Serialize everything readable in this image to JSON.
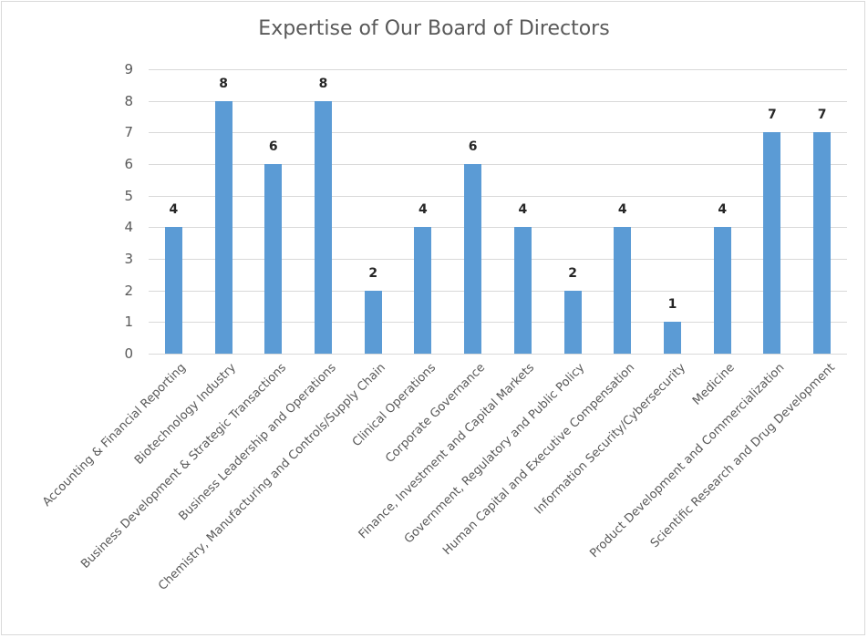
{
  "chart_data": {
    "type": "bar",
    "title": "Expertise of Our Board of Directors",
    "xlabel": "",
    "ylabel": "",
    "ylim": [
      0,
      9
    ],
    "yticks": [
      0,
      1,
      2,
      3,
      4,
      5,
      6,
      7,
      8,
      9
    ],
    "grid": true,
    "legend": null,
    "bar_color": "#5b9bd5",
    "data_labels": true,
    "categories": [
      "Accounting & Financial Reporting",
      "Biotechnology Industry",
      "Business Development & Strategic Transactions",
      "Business Leadership and Operations",
      "Chemistry, Manufacturing and Controls/Supply Chain",
      "Clinical Operations",
      "Corporate Governance",
      "Finance, Investment and Capital Markets",
      "Government, Regulatory and Public Policy",
      "Human Capital and Executive Compensation",
      "Information Security/Cybersecurity",
      "Medicine",
      "Product Development and Commercialization",
      "Scientific Research and Drug Development"
    ],
    "values": [
      4,
      8,
      6,
      8,
      2,
      4,
      6,
      4,
      2,
      4,
      1,
      4,
      7,
      7
    ]
  }
}
